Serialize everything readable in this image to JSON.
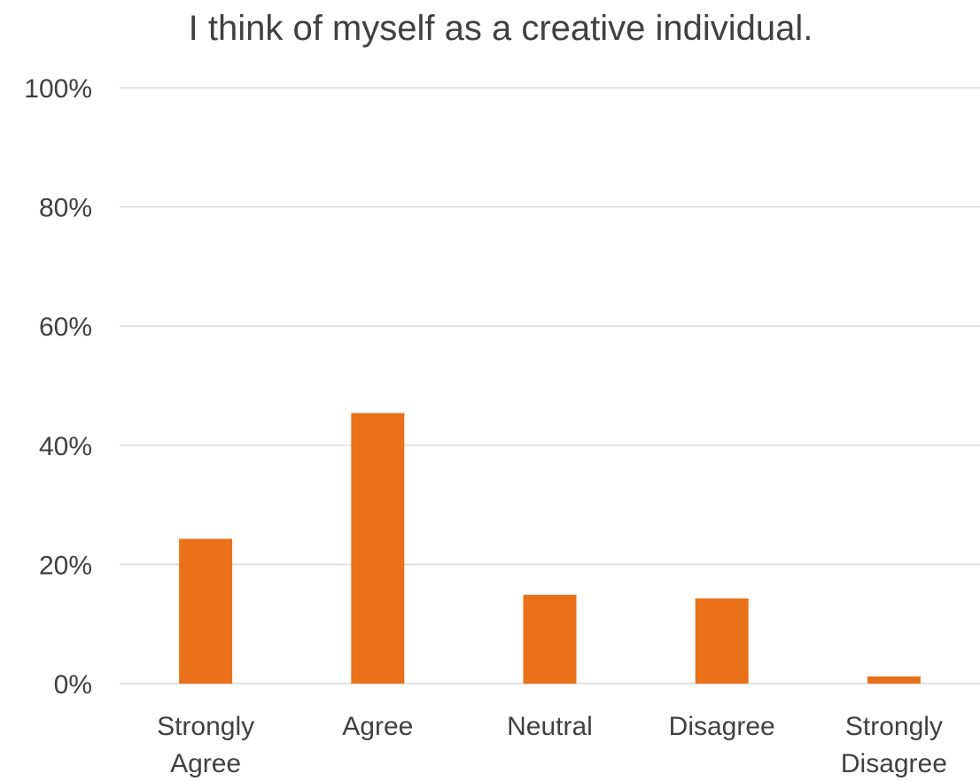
{
  "chart_data": {
    "type": "bar",
    "title": "I think of myself as a creative individual.",
    "categories": [
      [
        "Strongly",
        "Agree"
      ],
      [
        "Agree"
      ],
      [
        "Neutral"
      ],
      [
        "Disagree"
      ],
      [
        "Strongly",
        "Disagree"
      ]
    ],
    "values": [
      24.3,
      45.4,
      14.9,
      14.3,
      1.2
    ],
    "ylim": [
      0,
      100
    ],
    "yticks": [
      0,
      20,
      40,
      60,
      80,
      100
    ],
    "ytick_labels": [
      "0%",
      "20%",
      "40%",
      "60%",
      "80%",
      "100%"
    ],
    "xlabel": "",
    "ylabel": "",
    "grid": true,
    "legend": "none",
    "bar_color": "#E97119"
  }
}
